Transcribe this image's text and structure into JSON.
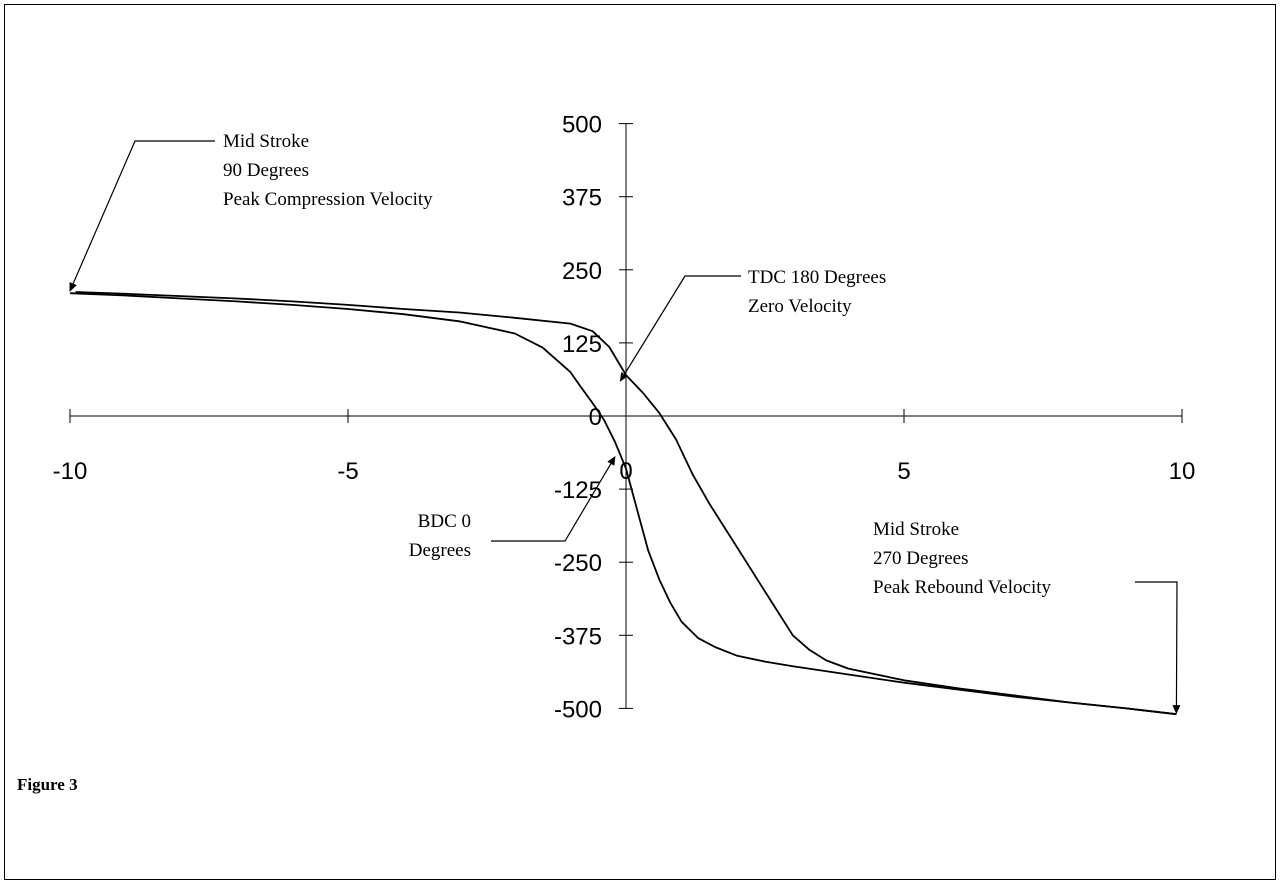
{
  "caption": "Figure 3",
  "chart_data": {
    "type": "line",
    "title": "",
    "xlabel": "",
    "ylabel": "",
    "xlim": [
      -10,
      10
    ],
    "ylim": [
      -500,
      500
    ],
    "x_ticks": [
      -10,
      -5,
      0,
      5,
      10
    ],
    "y_ticks": [
      500,
      375,
      250,
      125,
      0,
      -125,
      -250,
      -375,
      -500
    ],
    "grid": false,
    "series": [
      {
        "x": [
          -10,
          -9,
          -8,
          -7,
          -6,
          -5,
          -4,
          -3,
          -2,
          -1.5,
          -1,
          -0.8,
          -0.6,
          -0.4,
          -0.2,
          0,
          0.2,
          0.4,
          0.6,
          0.8,
          1,
          1.3,
          1.6,
          2,
          2.5,
          3,
          4,
          5,
          6,
          7,
          8,
          9,
          9.9
        ],
        "y": [
          210,
          206,
          201,
          196,
          190,
          183,
          174,
          162,
          141,
          117,
          75,
          48,
          22,
          -6,
          -44,
          -90,
          -160,
          -230,
          -280,
          -320,
          -352,
          -380,
          -395,
          -410,
          -420,
          -428,
          -442,
          -456,
          -468,
          -480,
          -490,
          -500,
          -510
        ]
      },
      {
        "x": [
          -9.9,
          -9,
          -8,
          -7,
          -6,
          -5,
          -4,
          -3,
          -2,
          -1,
          -0.6,
          -0.3,
          0,
          0.3,
          0.6,
          0.9,
          1.2,
          1.5,
          1.8,
          2.1,
          2.4,
          2.7,
          3,
          3.3,
          3.6,
          4,
          5,
          6,
          7,
          8,
          9,
          9.9
        ],
        "y": [
          212,
          209,
          205,
          201,
          196,
          190,
          183,
          177,
          168,
          158,
          145,
          118,
          70,
          40,
          5,
          -40,
          -100,
          -150,
          -195,
          -240,
          -285,
          -330,
          -375,
          -400,
          -418,
          -432,
          -452,
          -466,
          -478,
          -490,
          -500,
          -510
        ]
      }
    ],
    "annotations": [
      {
        "lines": [
          "Mid Stroke",
          "90 Degrees",
          "Peak Compression Velocity"
        ],
        "point": [
          -10,
          214
        ]
      },
      {
        "lines": [
          "TDC 180 Degrees",
          "Zero Velocity"
        ],
        "point": [
          -0.1,
          60
        ]
      },
      {
        "lines": [
          "BDC 0",
          "Degrees"
        ],
        "point": [
          -0.2,
          -70
        ]
      },
      {
        "lines": [
          "Mid Stroke",
          "270 Degrees",
          "Peak Rebound Velocity"
        ],
        "point": [
          9.9,
          -508
        ]
      }
    ]
  }
}
